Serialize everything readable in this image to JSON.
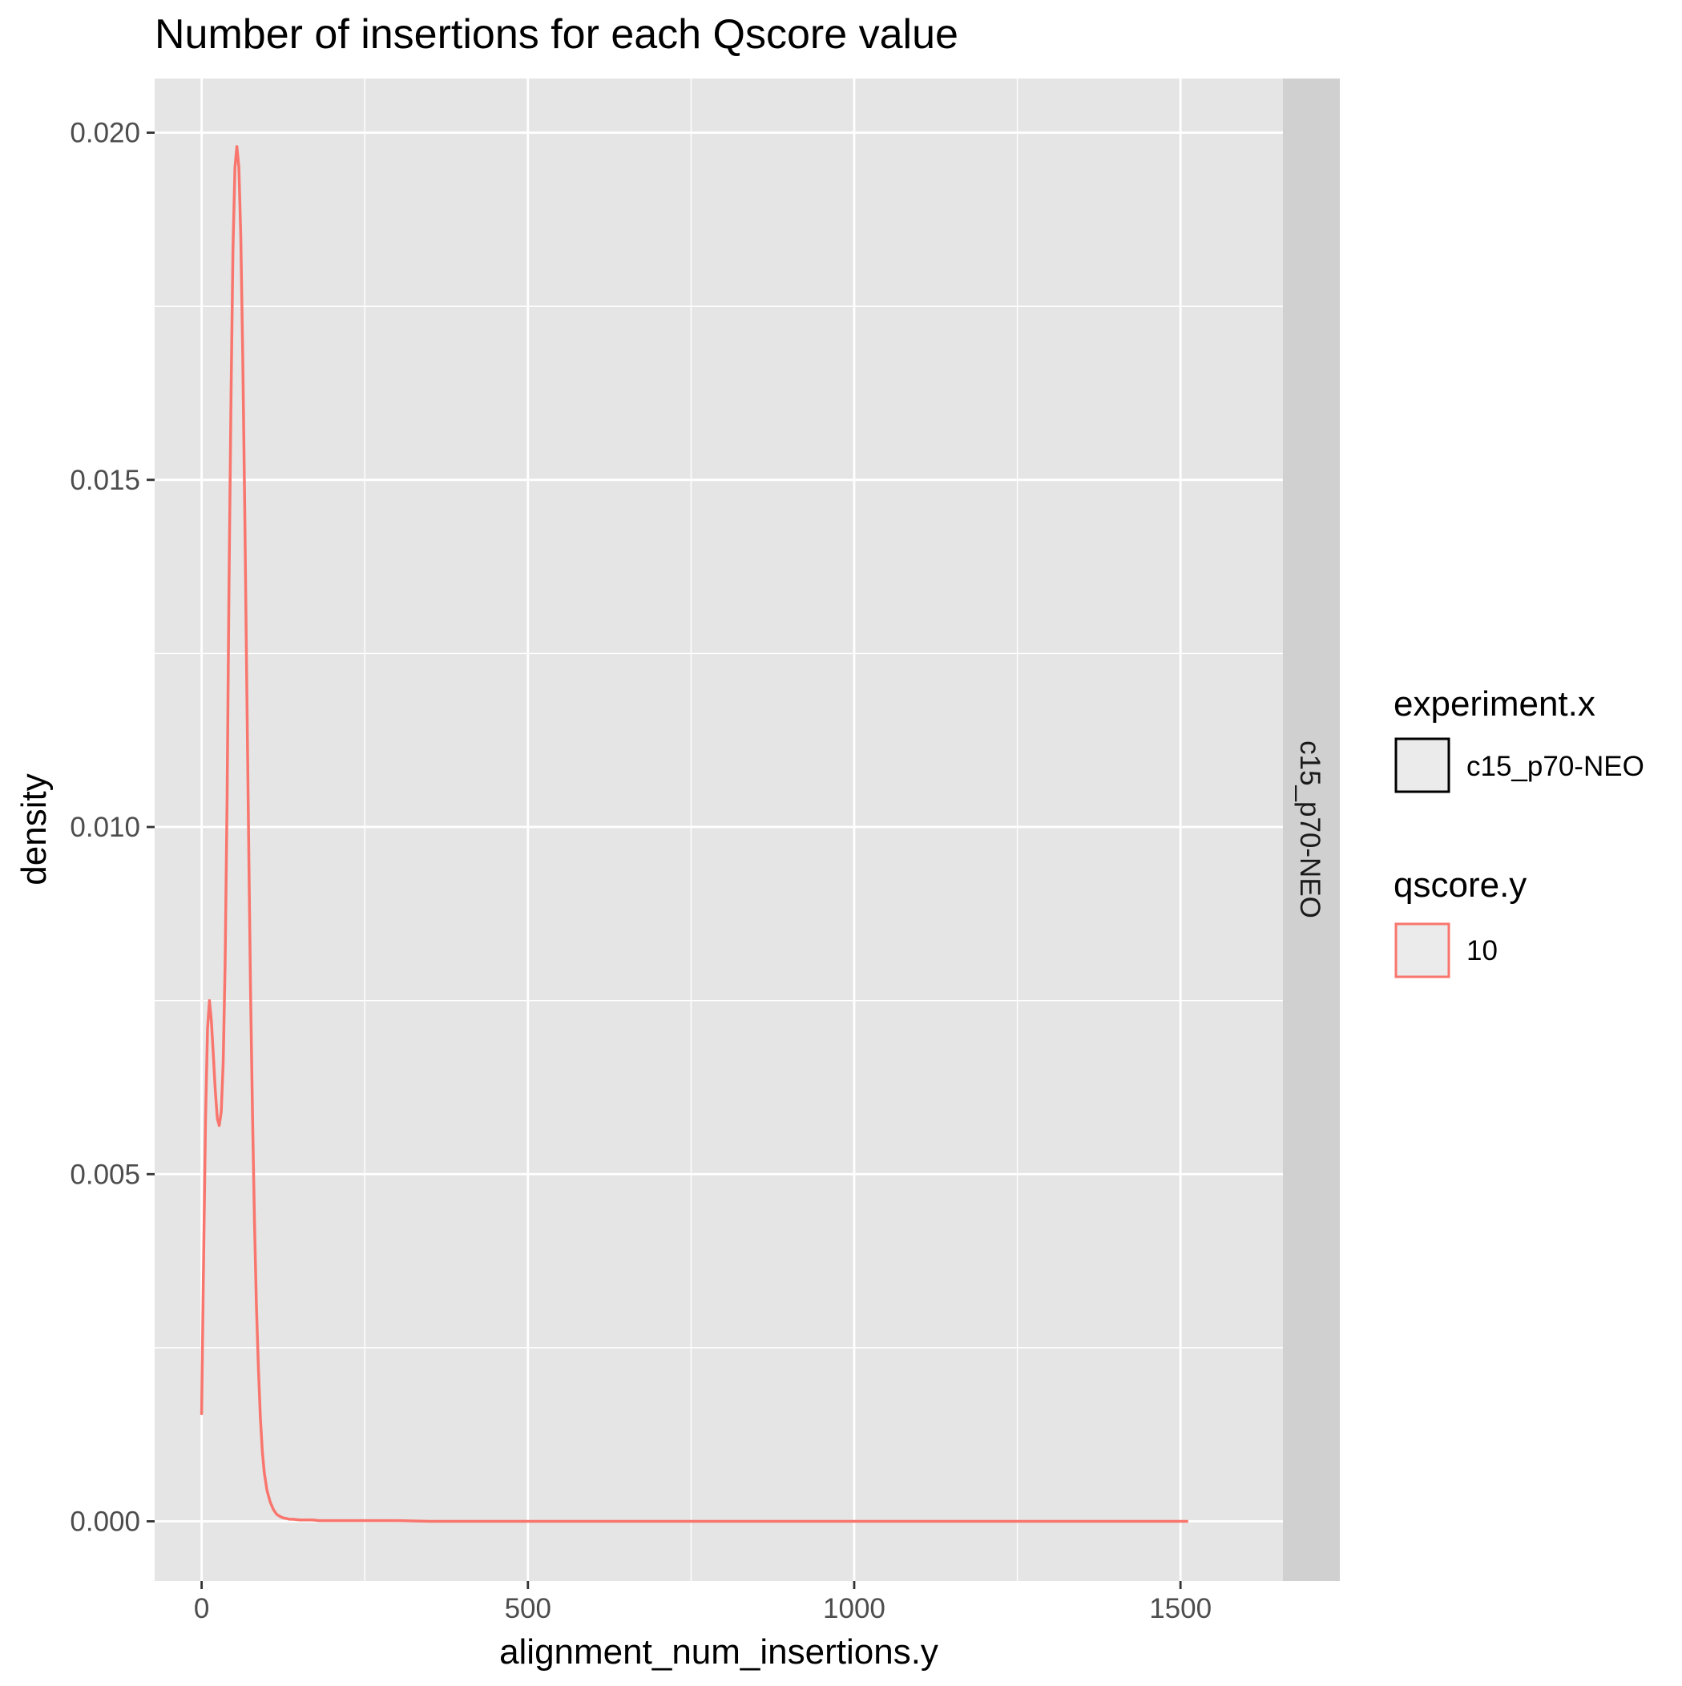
{
  "chart_data": {
    "type": "line",
    "title": "Number of insertions for each Qscore value",
    "xlabel": "alignment_num_insertions.y",
    "ylabel": "density",
    "xlim": [
      -72,
      1657
    ],
    "ylim": [
      -0.00086,
      0.02078
    ],
    "x_ticks": [
      0,
      500,
      1000,
      1500
    ],
    "x_tick_labels": [
      "0",
      "500",
      "1000",
      "1500"
    ],
    "x_minor_ticks": [
      250,
      750,
      1250
    ],
    "y_ticks": [
      0.0,
      0.005,
      0.01,
      0.015,
      0.02
    ],
    "y_tick_labels": [
      "0.000",
      "0.005",
      "0.010",
      "0.015",
      "0.020"
    ],
    "y_minor_ticks": [
      0.0025,
      0.0075,
      0.0125,
      0.0175
    ],
    "grid": true,
    "facet_label": "c15_p70-NEO",
    "legend_position": "right",
    "legends": [
      {
        "title": "experiment.x",
        "entries": [
          {
            "label": "c15_p70-NEO",
            "color": "#000000"
          }
        ]
      },
      {
        "title": "qscore.y",
        "entries": [
          {
            "label": "10",
            "color": "#F8766D"
          }
        ]
      }
    ],
    "series": [
      {
        "name": "10",
        "color": "#F8766D",
        "x": [
          0,
          3,
          6,
          9,
          12,
          15,
          18,
          21,
          24,
          27,
          30,
          33,
          36,
          39,
          42,
          45,
          48,
          51,
          54,
          57,
          60,
          63,
          66,
          69,
          72,
          75,
          78,
          81,
          84,
          87,
          90,
          93,
          96,
          100,
          105,
          110,
          115,
          120,
          125,
          130,
          135,
          140,
          150,
          160,
          170,
          180,
          200,
          220,
          250,
          300,
          350,
          400,
          450,
          500,
          600,
          700,
          800,
          900,
          1000,
          1100,
          1200,
          1300,
          1400,
          1510
        ],
        "y": [
          0.00155,
          0.0038,
          0.0058,
          0.0071,
          0.0075,
          0.0072,
          0.0067,
          0.0062,
          0.0058,
          0.0057,
          0.0059,
          0.0066,
          0.008,
          0.0104,
          0.0135,
          0.0162,
          0.0183,
          0.0195,
          0.0198,
          0.0195,
          0.0185,
          0.0168,
          0.0146,
          0.0122,
          0.0098,
          0.0076,
          0.0058,
          0.0043,
          0.0031,
          0.0022,
          0.0015,
          0.001,
          0.0007,
          0.00045,
          0.00028,
          0.00017,
          0.0001,
          7e-05,
          5e-05,
          4e-05,
          3e-05,
          3e-05,
          2e-05,
          2e-05,
          2e-05,
          1e-05,
          1e-05,
          1e-05,
          1e-05,
          1e-05,
          0.0,
          0.0,
          0.0,
          0.0,
          0.0,
          0.0,
          0.0,
          0.0,
          0.0,
          0.0,
          0.0,
          0.0,
          0.0,
          0.0
        ]
      }
    ]
  },
  "colors": {
    "panel_background": "#E5E5E5",
    "grid": "#FFFFFF",
    "strip_background": "#D0D0D0",
    "legend_key_fill": "#EBEBEB"
  }
}
